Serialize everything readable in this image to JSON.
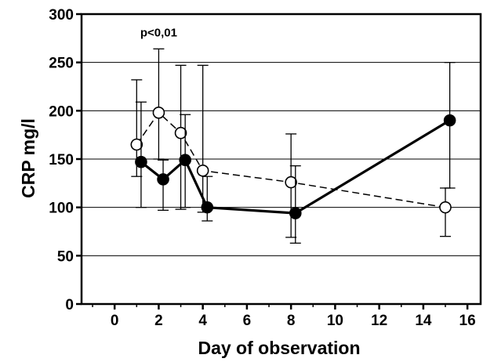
{
  "chart_data": {
    "type": "line",
    "title": "",
    "xlabel": "Day of observation",
    "ylabel": "CRP mg/l",
    "xlim": [
      -1.5,
      16.6
    ],
    "ylim": [
      0,
      300
    ],
    "xticks": [
      0,
      2,
      4,
      6,
      8,
      10,
      12,
      14,
      16
    ],
    "yticks": [
      0,
      50,
      100,
      150,
      200,
      250,
      300
    ],
    "grid": "horizontal",
    "annotations": [
      {
        "text": "p<0,01",
        "x": 2.0,
        "y": 277
      }
    ],
    "series": [
      {
        "marker": "open-circle",
        "line": "dashed",
        "color": "#000000",
        "points": [
          {
            "x": 1.0,
            "y": 165,
            "err_low": 132,
            "err_high": 232
          },
          {
            "x": 2.0,
            "y": 198,
            "err_low": 150,
            "err_high": 264
          },
          {
            "x": 3.0,
            "y": 177,
            "err_low": 98,
            "err_high": 247
          },
          {
            "x": 4.0,
            "y": 138,
            "err_low": 95,
            "err_high": 247
          },
          {
            "x": 8.0,
            "y": 126,
            "err_low": 69,
            "err_high": 176
          },
          {
            "x": 15.0,
            "y": 100,
            "err_low": 70,
            "err_high": 120
          }
        ]
      },
      {
        "marker": "filled-circle",
        "line": "solid",
        "color": "#000000",
        "points": [
          {
            "x": 1.2,
            "y": 147,
            "err_low": 100,
            "err_high": 209
          },
          {
            "x": 2.2,
            "y": 129,
            "err_low": 97,
            "err_high": 149
          },
          {
            "x": 3.2,
            "y": 149,
            "err_low": 100,
            "err_high": 196
          },
          {
            "x": 4.2,
            "y": 100,
            "err_low": 86,
            "err_high": 132
          },
          {
            "x": 8.2,
            "y": 94,
            "err_low": 63,
            "err_high": 143
          },
          {
            "x": 15.2,
            "y": 190,
            "err_low": 120,
            "err_high": 250
          }
        ]
      }
    ]
  }
}
